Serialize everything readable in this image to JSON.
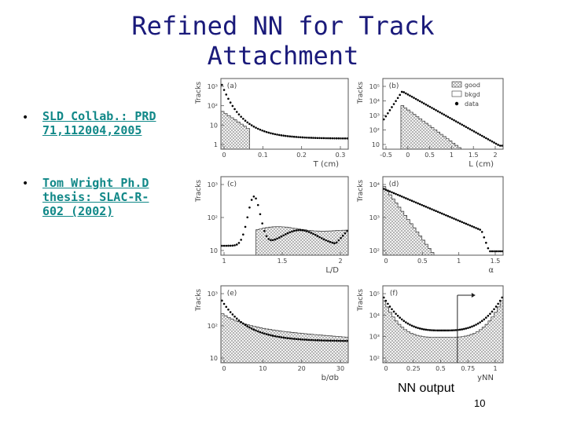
{
  "slide": {
    "title_line1": "Refined NN for Track",
    "title_line2": "Attachment",
    "bullets": [
      {
        "marker": "•",
        "lines": [
          "SLD Collab.: PRD",
          "71,112004,2005"
        ]
      },
      {
        "marker": "•",
        "lines": [
          "Tom Wright Ph.D",
          "thesis: SLAC-R-",
          "602 (2002)"
        ]
      }
    ],
    "caption": "NN output",
    "page_number": "10"
  },
  "figure": {
    "legend": [
      "good",
      "bkgd",
      "data"
    ],
    "ylabel": "Tracks",
    "panels": [
      {
        "tag": "(a)",
        "xlabel": "T (cm)",
        "xticks": [
          "0",
          "0.1",
          "0.2",
          "0.3"
        ],
        "yticks": [
          "10³",
          "10²",
          "10",
          "1"
        ]
      },
      {
        "tag": "(b)",
        "xlabel": "L (cm)",
        "xticks": [
          "-0.5",
          "0",
          "0.5",
          "1",
          "1.5",
          "2"
        ],
        "yticks": [
          "10⁵",
          "10⁴",
          "10³",
          "10²",
          "10"
        ]
      },
      {
        "tag": "(c)",
        "xlabel": "L/D",
        "xticks": [
          "1",
          "1.5",
          "2"
        ],
        "yticks": [
          "10³",
          "10²",
          "10"
        ]
      },
      {
        "tag": "(d)",
        "xlabel": "α",
        "xticks": [
          "0",
          "0.5",
          "1",
          "1.5"
        ],
        "yticks": [
          "10⁴",
          "10³",
          "10²"
        ]
      },
      {
        "tag": "(e)",
        "xlabel": "b/σb",
        "xticks": [
          "0",
          "10",
          "20",
          "30"
        ],
        "yticks": [
          "10³",
          "10²",
          "10"
        ]
      },
      {
        "tag": "(f)",
        "xlabel": "yNN",
        "xticks": [
          "0",
          "0.25",
          "0.5",
          "0.75",
          "1"
        ],
        "yticks": [
          "10⁵",
          "10⁴",
          "10³",
          "10²"
        ]
      }
    ]
  }
}
